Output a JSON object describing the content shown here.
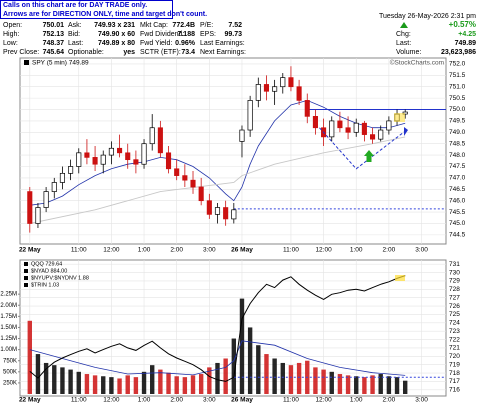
{
  "header": {
    "notice": [
      "Calls on this chart are for DAY TRADE only.",
      "Arrows are for DIRECTION ONLY, time and target don't count."
    ],
    "quote": [
      [
        "Open:",
        "750.01",
        "Ask:",
        "749.93 x 231",
        "Mkt Cap:",
        "772.4B",
        "P/E:",
        "7.52"
      ],
      [
        "High:",
        "752.13",
        "Bid:",
        "749.90 x 60",
        "Fwd Dividend:",
        "7.188",
        "EPS:",
        "99.73"
      ],
      [
        "Low:",
        "748.37",
        "Last:",
        "749.89 x 80",
        "Fwd Yield:",
        "0.96%",
        "Last Earnings:"
      ],
      [
        "Prev Close:",
        "745.64",
        "Optionable:",
        "yes",
        "SCTR (ETF):",
        "73.4",
        "Next Earnings:"
      ]
    ],
    "date": "Tuesday 26-May-2026 2:31 pm",
    "change_pct": "+0.57%",
    "chg_label": "Chg:",
    "chg": "+4.25",
    "last_label": "Last:",
    "last": "749.89",
    "volume_label": "Volume:",
    "volume": "23,623,986"
  },
  "chart_data": [
    {
      "type": "candlestick",
      "legend": "SPY (5 min) 749.89",
      "watermark": "©StockCharts.com",
      "x": [
        0,
        1,
        2,
        3,
        4,
        5,
        6,
        7,
        8,
        9,
        10,
        11,
        12,
        13,
        14,
        15,
        16,
        17,
        18,
        19,
        20,
        21,
        22,
        23,
        24,
        25,
        26,
        27,
        28,
        29,
        30,
        31,
        32,
        33,
        34,
        35,
        36,
        37,
        38,
        39,
        40,
        41,
        42,
        43,
        44,
        45,
        46
      ],
      "open": [
        746.4,
        745.0,
        745.7,
        746.4,
        746.8,
        747.2,
        747.5,
        748.1,
        747.9,
        747.6,
        748.0,
        748.3,
        748.1,
        747.8,
        747.6,
        748.5,
        749.2,
        748.1,
        747.4,
        747.1,
        746.9,
        746.6,
        746.0,
        745.4,
        745.7,
        745.2,
        748.6,
        749.1,
        750.4,
        751.1,
        750.8,
        751.0,
        751.4,
        751.0,
        750.4,
        749.7,
        749.2,
        748.8,
        749.5,
        749.2,
        749.0,
        749.4,
        748.9,
        748.7,
        749.1,
        749.5,
        749.8
      ],
      "high": [
        746.6,
        745.9,
        746.6,
        747.0,
        747.5,
        747.8,
        748.3,
        748.7,
        748.4,
        748.2,
        748.6,
        748.9,
        748.5,
        748.2,
        748.7,
        749.8,
        749.5,
        748.4,
        747.8,
        747.6,
        747.3,
        747.0,
        746.3,
        745.9,
        746.0,
        745.9,
        749.3,
        750.6,
        751.4,
        751.5,
        751.3,
        751.6,
        751.9,
        751.3,
        750.7,
        750.0,
        749.6,
        749.7,
        749.9,
        749.7,
        749.6,
        749.5,
        749.2,
        749.3,
        749.7,
        750.0,
        750.0
      ],
      "low": [
        744.6,
        744.8,
        745.5,
        746.1,
        746.5,
        746.9,
        747.2,
        747.6,
        747.3,
        747.2,
        747.6,
        747.9,
        747.4,
        747.2,
        747.4,
        748.2,
        747.9,
        747.2,
        746.9,
        746.6,
        746.3,
        745.8,
        745.2,
        745.0,
        744.9,
        745.0,
        747.9,
        748.8,
        750.1,
        750.4,
        750.2,
        750.7,
        750.8,
        750.2,
        749.4,
        748.9,
        748.4,
        748.6,
        749.0,
        748.7,
        748.8,
        748.6,
        748.5,
        748.6,
        748.9,
        749.3,
        749.6
      ],
      "close": [
        745.0,
        745.7,
        746.4,
        746.8,
        747.2,
        747.5,
        748.1,
        747.9,
        747.6,
        748.0,
        748.3,
        748.1,
        747.8,
        747.6,
        748.5,
        749.2,
        748.1,
        747.4,
        747.1,
        746.9,
        746.6,
        746.0,
        745.4,
        745.7,
        745.2,
        745.6,
        749.1,
        750.4,
        751.1,
        750.8,
        751.0,
        751.4,
        751.0,
        750.4,
        749.7,
        749.2,
        748.8,
        749.5,
        749.2,
        749.0,
        749.4,
        748.9,
        748.7,
        749.1,
        749.5,
        749.8,
        749.89
      ],
      "up_color": "#000000",
      "down_color": "#cc1111",
      "ma": [
        {
          "x": [
            0,
            2,
            4,
            6,
            8,
            10,
            12,
            14,
            16,
            18,
            20,
            22,
            24,
            25,
            26,
            27,
            28,
            30,
            32,
            34,
            36,
            38,
            40,
            42,
            44,
            46
          ],
          "values": [
            745.8,
            745.9,
            746.2,
            746.7,
            747.1,
            747.4,
            747.6,
            747.7,
            747.9,
            747.8,
            747.5,
            747.0,
            746.3,
            746.0,
            746.6,
            747.6,
            748.4,
            749.5,
            750.2,
            750.4,
            750.1,
            749.7,
            749.4,
            749.2,
            749.2,
            749.4
          ],
          "color": "#2233aa"
        },
        {
          "x": [
            0,
            8,
            16,
            25,
            26,
            30,
            36,
            42,
            46
          ],
          "values": [
            745.0,
            745.6,
            746.4,
            746.8,
            747.1,
            747.6,
            748.1,
            748.5,
            748.8
          ],
          "color": "#c8c8c8"
        }
      ],
      "hlines": [
        {
          "value": 750.0,
          "from": 34,
          "color": "#2233cc",
          "dash": false
        },
        {
          "value": 745.64,
          "from": 25,
          "color": "#3344dd",
          "dash": true
        }
      ],
      "xlim": [
        -1.2,
        51
      ],
      "ylim": [
        744.1,
        752.26
      ],
      "xticks": [
        {
          "value": 0,
          "label": "22 May"
        },
        {
          "value": 6,
          "label": "11:00"
        },
        {
          "value": 10,
          "label": "12:00"
        },
        {
          "value": 14,
          "label": "1:00"
        },
        {
          "value": 18,
          "label": "2:00"
        },
        {
          "value": 22,
          "label": "3:00"
        },
        {
          "value": 26,
          "label": "26 May"
        },
        {
          "value": 32,
          "label": "11:00"
        },
        {
          "value": 36,
          "label": "12:00"
        },
        {
          "value": 40,
          "label": "1:00"
        },
        {
          "value": 44,
          "label": "2:00"
        },
        {
          "value": 48,
          "label": "3:00"
        }
      ],
      "yticks": [
        744.5,
        {
          "value": 745.0,
          "label": "745.0"
        },
        745.5,
        {
          "value": 746.0,
          "label": "746.0"
        },
        746.5,
        {
          "value": 747.0,
          "label": "747.0"
        },
        747.5,
        {
          "value": 748.0,
          "label": "748.0"
        },
        748.5,
        {
          "value": 749.0,
          "label": "749.0"
        },
        749.5,
        {
          "value": 750.0,
          "label": "750.0"
        },
        750.5,
        {
          "value": 751.0,
          "label": "751.0"
        },
        751.5,
        {
          "value": 752.0,
          "label": "752.0"
        }
      ]
    },
    {
      "type": "volume",
      "legend": [
        "QQQ 729.64",
        "$NYAD 884.00",
        "$NYUPV:$NYDNV 1.88",
        "$TRIN 1.03"
      ],
      "x": [
        0,
        1,
        2,
        3,
        4,
        5,
        6,
        7,
        8,
        9,
        10,
        11,
        12,
        13,
        14,
        15,
        16,
        17,
        18,
        19,
        20,
        21,
        22,
        23,
        24,
        25,
        26,
        27,
        28,
        29,
        30,
        31,
        32,
        33,
        34,
        35,
        36,
        37,
        38,
        39,
        40,
        41,
        42,
        43,
        44,
        45,
        46
      ],
      "volume": {
        "values": [
          1650000,
          900000,
          700000,
          650000,
          600000,
          550000,
          500000,
          450000,
          420000,
          400000,
          380000,
          350000,
          420000,
          380000,
          500000,
          650000,
          550000,
          480000,
          400000,
          380000,
          420000,
          450000,
          600000,
          700000,
          800000,
          1250000,
          2150000,
          1500000,
          1100000,
          900000,
          800000,
          700000,
          650000,
          700000,
          750000,
          600000,
          550000,
          500000,
          450000,
          420000,
          400000,
          380000,
          420000,
          450000,
          400000,
          380000,
          300000
        ],
        "up_color": "#000000",
        "down_color": "#cc1111"
      },
      "volume_ma": {
        "x": [
          0,
          4,
          8,
          12,
          16,
          20,
          24,
          25,
          26,
          30,
          34,
          38,
          42,
          46
        ],
        "values": [
          1000000,
          800000,
          600000,
          450000,
          480000,
          430000,
          600000,
          750000,
          1200000,
          1100000,
          800000,
          600000,
          480000,
          420000
        ],
        "color": "#2233aa"
      },
      "qqq": {
        "values": [
          718.2,
          717.4,
          718.5,
          719.3,
          719.8,
          720.2,
          720.6,
          720.9,
          720.4,
          720.8,
          721.2,
          721.5,
          721.0,
          720.7,
          721.3,
          721.8,
          721.0,
          720.3,
          719.8,
          719.4,
          719.0,
          718.4,
          717.6,
          717.2,
          717.0,
          717.5,
          724.5,
          726.3,
          727.6,
          728.6,
          728.2,
          729.1,
          729.5,
          728.6,
          727.9,
          727.3,
          726.8,
          727.4,
          727.6,
          727.9,
          728.0,
          727.8,
          728.2,
          728.6,
          728.9,
          729.3,
          729.64
        ],
        "color": "#000000",
        "axis": "y2"
      },
      "prev_close": {
        "value": 717.5,
        "from": 25,
        "color": "#3344dd"
      },
      "xlim": [
        -1.2,
        51
      ],
      "ylim": [
        0,
        3020000
      ],
      "y2lim": [
        715.5,
        731.5
      ],
      "xticks": [
        {
          "value": 0,
          "label": "22 May"
        },
        {
          "value": 6,
          "label": "11:00"
        },
        {
          "value": 10,
          "label": "12:00"
        },
        {
          "value": 14,
          "label": "1:00"
        },
        {
          "value": 18,
          "label": "2:00"
        },
        {
          "value": 22,
          "label": "3:00"
        },
        {
          "value": 26,
          "label": "26 May"
        },
        {
          "value": 32,
          "label": "11:00"
        },
        {
          "value": 36,
          "label": "12:00"
        },
        {
          "value": 40,
          "label": "1:00"
        },
        {
          "value": 44,
          "label": "2:00"
        },
        {
          "value": 48,
          "label": "3:00"
        }
      ],
      "yticks": [
        {
          "value": 250000,
          "label": "250K"
        },
        {
          "value": 500000,
          "label": "500K"
        },
        {
          "value": 750000,
          "label": "750K"
        },
        {
          "value": 1000000,
          "label": "1.00M"
        },
        {
          "value": 1250000,
          "label": "1.25M"
        },
        {
          "value": 1500000,
          "label": "1.50M"
        },
        {
          "value": 1750000,
          "label": "1.75M"
        },
        {
          "value": 2000000,
          "label": "2.00M"
        },
        {
          "value": 2250000,
          "label": "2.25M"
        }
      ],
      "y2ticks": [
        716,
        717,
        718,
        719,
        720,
        721,
        722,
        723,
        724,
        725,
        726,
        727,
        728,
        729,
        730,
        731
      ]
    }
  ]
}
